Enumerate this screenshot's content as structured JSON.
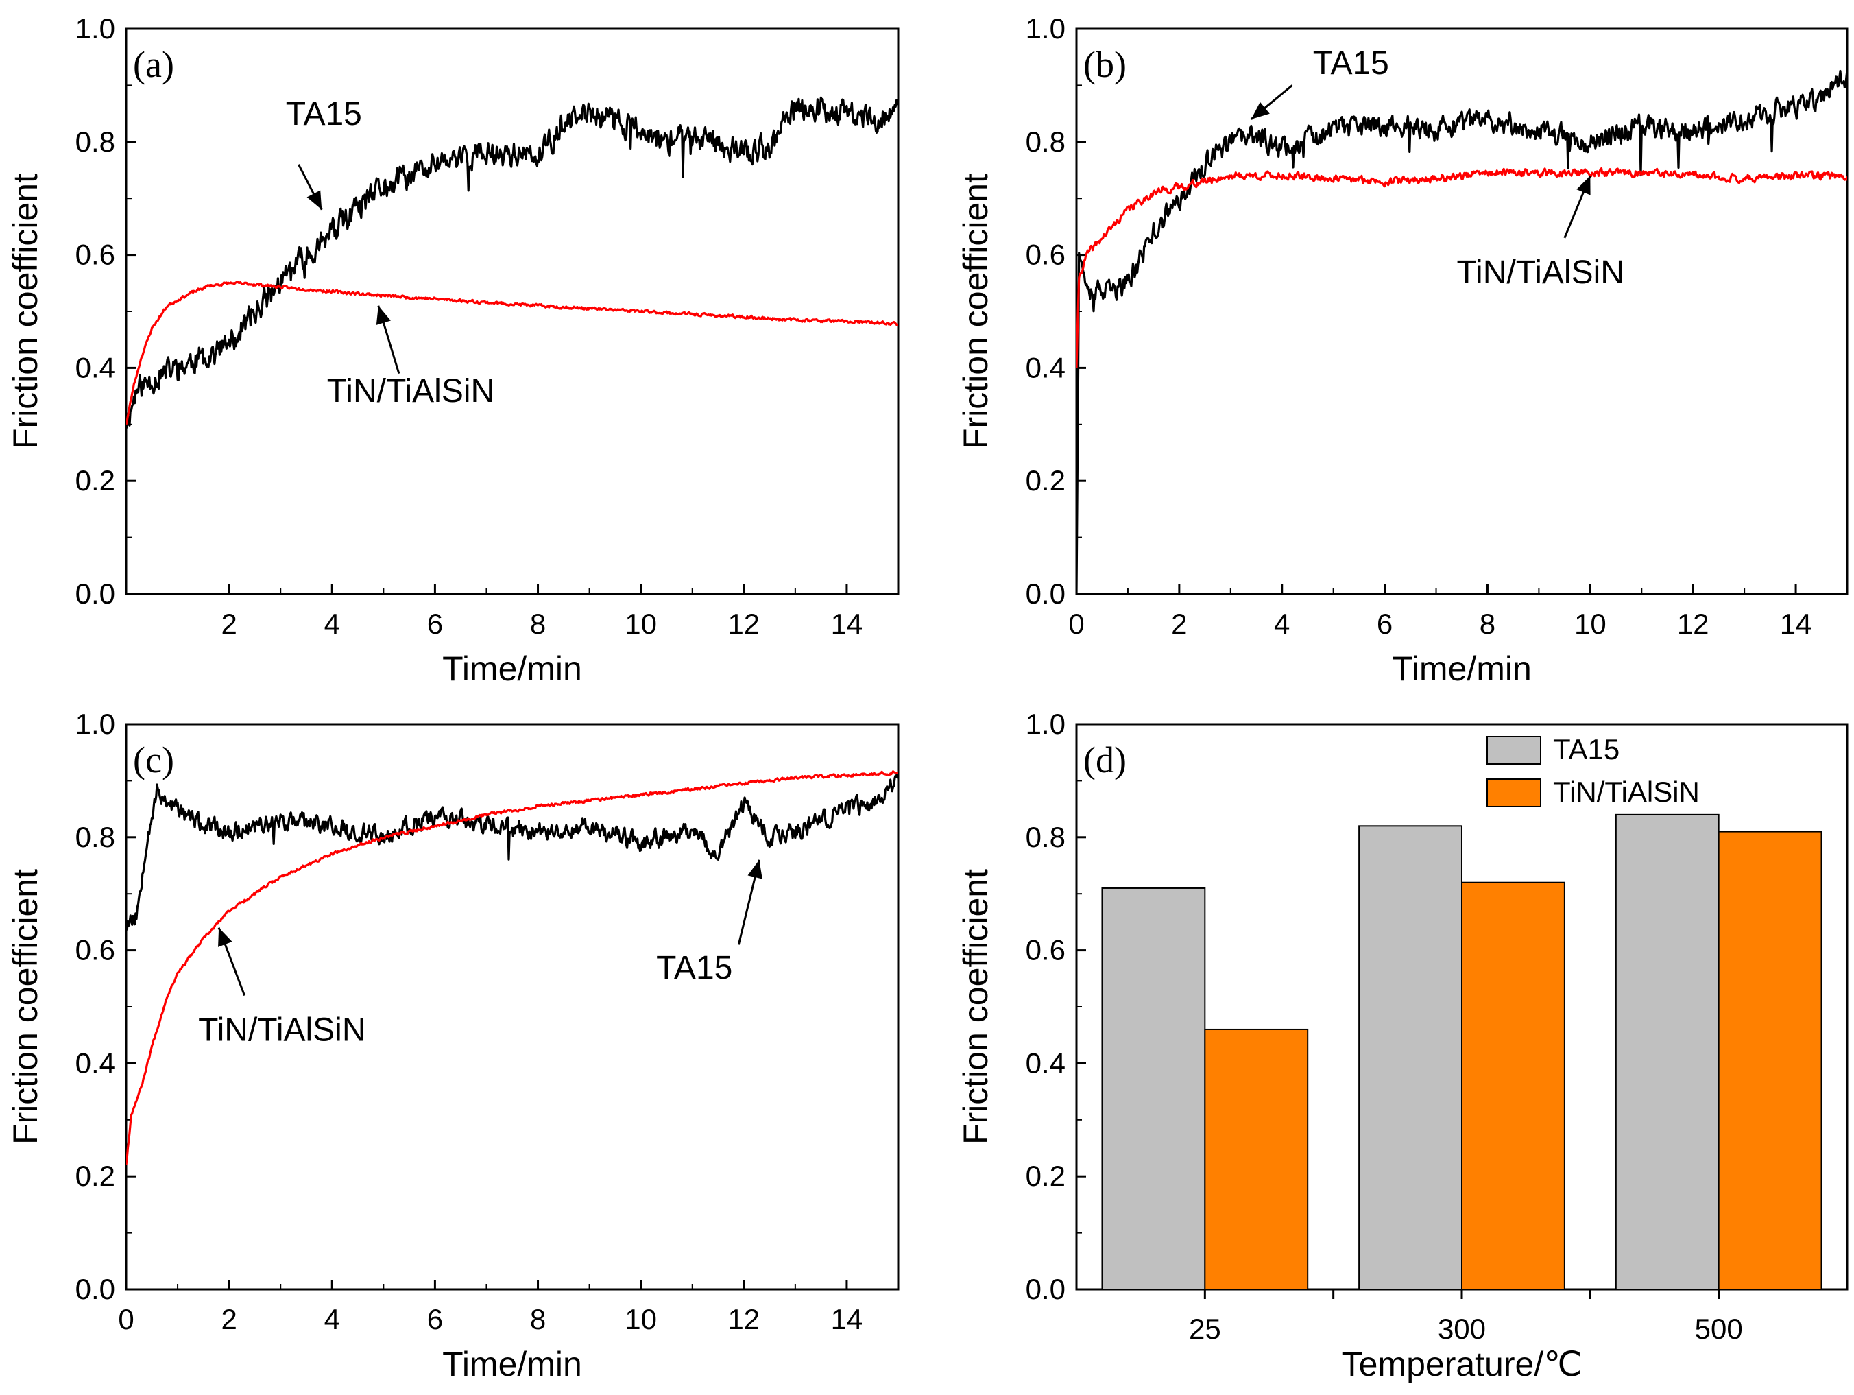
{
  "chart_data": [
    {
      "id": "a",
      "type": "line",
      "panel_label": "(a)",
      "xlabel": "Time/min",
      "ylabel": "Friction coefficient",
      "xlim": [
        0,
        15
      ],
      "ylim": [
        0,
        1.0
      ],
      "xticks": [
        2,
        4,
        6,
        8,
        10,
        12,
        14
      ],
      "xtick_labels": [
        "2",
        "4",
        "6",
        "8",
        "10",
        "12",
        "14"
      ],
      "yticks": [
        0.0,
        0.2,
        0.4,
        0.6,
        0.8,
        1.0
      ],
      "ytick_labels": [
        "0.0",
        "0.2",
        "0.4",
        "0.6",
        "0.8",
        "1.0"
      ],
      "series": [
        {
          "name": "TA15",
          "color": "#000000",
          "noise": 0.035,
          "seed": 11,
          "x": [
            0,
            0.2,
            0.5,
            1,
            1.5,
            2,
            2.5,
            3,
            3.5,
            4,
            4.5,
            5,
            5.5,
            6,
            6.5,
            7,
            7.5,
            8,
            8.5,
            9,
            9.5,
            10,
            10.5,
            11,
            11.5,
            12,
            12.5,
            13,
            13.5,
            14,
            14.5,
            15
          ],
          "values": [
            0.3,
            0.36,
            0.38,
            0.4,
            0.42,
            0.44,
            0.5,
            0.55,
            0.6,
            0.64,
            0.68,
            0.72,
            0.74,
            0.76,
            0.77,
            0.78,
            0.78,
            0.77,
            0.83,
            0.85,
            0.84,
            0.82,
            0.8,
            0.81,
            0.8,
            0.78,
            0.79,
            0.86,
            0.86,
            0.85,
            0.84,
            0.85
          ]
        },
        {
          "name": "TiN/TiAlSiN",
          "color": "#ff0000",
          "noise": 0.004,
          "seed": 23,
          "x": [
            0,
            0.15,
            0.3,
            0.5,
            0.8,
            1.2,
            1.6,
            2,
            2.5,
            3,
            4,
            5,
            6,
            7,
            8,
            9,
            10,
            11,
            12,
            13,
            14,
            15
          ],
          "values": [
            0.3,
            0.37,
            0.42,
            0.47,
            0.51,
            0.53,
            0.545,
            0.55,
            0.548,
            0.543,
            0.535,
            0.528,
            0.522,
            0.516,
            0.51,
            0.505,
            0.5,
            0.495,
            0.49,
            0.485,
            0.482,
            0.478
          ]
        }
      ],
      "annotations": [
        {
          "text": "TA15",
          "x": 3.1,
          "y": 0.83,
          "ax": 3.8,
          "ay": 0.68,
          "tx": 3.35,
          "ty": 0.76
        },
        {
          "text": "TiN/TiAlSiN",
          "x": 3.9,
          "y": 0.34,
          "ax": 4.9,
          "ay": 0.51,
          "tx": 5.3,
          "ty": 0.39
        }
      ]
    },
    {
      "id": "b",
      "type": "line",
      "panel_label": "(b)",
      "xlabel": "Time/min",
      "ylabel": "Friction coefficient",
      "xlim": [
        0,
        15
      ],
      "ylim": [
        0,
        1.0
      ],
      "xticks": [
        0,
        2,
        4,
        6,
        8,
        10,
        12,
        14
      ],
      "xtick_labels": [
        "0",
        "2",
        "4",
        "6",
        "8",
        "10",
        "12",
        "14"
      ],
      "yticks": [
        0.0,
        0.2,
        0.4,
        0.6,
        0.8,
        1.0
      ],
      "ytick_labels": [
        "0.0",
        "0.2",
        "0.4",
        "0.6",
        "0.8",
        "1.0"
      ],
      "series": [
        {
          "name": "TA15",
          "color": "#000000",
          "noise": 0.03,
          "seed": 37,
          "x": [
            0,
            0.05,
            0.1,
            0.3,
            0.6,
            1,
            1.5,
            2,
            2.5,
            3,
            3.5,
            4,
            5,
            6,
            7,
            8,
            9,
            10,
            11,
            12,
            13,
            14,
            14.5,
            15
          ],
          "values": [
            0.0,
            0.62,
            0.58,
            0.54,
            0.53,
            0.55,
            0.64,
            0.7,
            0.76,
            0.8,
            0.81,
            0.79,
            0.82,
            0.83,
            0.82,
            0.84,
            0.82,
            0.8,
            0.83,
            0.82,
            0.84,
            0.86,
            0.88,
            0.92
          ]
        },
        {
          "name": "TiN/TiAlSiN",
          "color": "#ff0000",
          "noise": 0.01,
          "seed": 41,
          "x": [
            0,
            0.05,
            0.2,
            0.5,
            1,
            1.5,
            2,
            3,
            4,
            5,
            6,
            7,
            8,
            9,
            10,
            11,
            12,
            13,
            14,
            15
          ],
          "values": [
            0.4,
            0.56,
            0.6,
            0.63,
            0.68,
            0.71,
            0.72,
            0.74,
            0.74,
            0.735,
            0.73,
            0.735,
            0.745,
            0.745,
            0.745,
            0.745,
            0.74,
            0.735,
            0.74,
            0.74
          ]
        }
      ],
      "annotations": [
        {
          "text": "TA15",
          "x": 4.6,
          "y": 0.92,
          "ax": 3.4,
          "ay": 0.84,
          "tx": 4.2,
          "ty": 0.9
        },
        {
          "text": "TiN/TiAlSiN",
          "x": 7.4,
          "y": 0.55,
          "ax": 10.0,
          "ay": 0.74,
          "tx": 9.5,
          "ty": 0.63
        }
      ]
    },
    {
      "id": "c",
      "type": "line",
      "panel_label": "(c)",
      "xlabel": "Time/min",
      "ylabel": "Friction coefficient",
      "xlim": [
        0,
        15
      ],
      "ylim": [
        0,
        1.0
      ],
      "xticks": [
        0,
        2,
        4,
        6,
        8,
        10,
        12,
        14
      ],
      "xtick_labels": [
        "0",
        "2",
        "4",
        "6",
        "8",
        "10",
        "12",
        "14"
      ],
      "yticks": [
        0.0,
        0.2,
        0.4,
        0.6,
        0.8,
        1.0
      ],
      "ytick_labels": [
        "0.0",
        "0.2",
        "0.4",
        "0.6",
        "0.8",
        "1.0"
      ],
      "series": [
        {
          "name": "TA15",
          "color": "#000000",
          "noise": 0.025,
          "seed": 53,
          "x": [
            0,
            0.2,
            0.4,
            0.6,
            1,
            1.5,
            2,
            3,
            4,
            5,
            6,
            7,
            8,
            9,
            10,
            11,
            11.5,
            12,
            12.5,
            13,
            14,
            14.5,
            15
          ],
          "values": [
            0.65,
            0.66,
            0.8,
            0.88,
            0.85,
            0.82,
            0.81,
            0.83,
            0.82,
            0.8,
            0.84,
            0.82,
            0.81,
            0.82,
            0.79,
            0.81,
            0.77,
            0.86,
            0.8,
            0.81,
            0.85,
            0.86,
            0.9
          ]
        },
        {
          "name": "TiN/TiAlSiN",
          "color": "#ff0000",
          "noise": 0.004,
          "seed": 67,
          "x": [
            0,
            0.1,
            0.3,
            0.5,
            0.8,
            1,
            1.5,
            2,
            3,
            4,
            5,
            6,
            7,
            8,
            9,
            10,
            11,
            12,
            13,
            14,
            15
          ],
          "values": [
            0.22,
            0.31,
            0.36,
            0.43,
            0.52,
            0.56,
            0.62,
            0.67,
            0.73,
            0.77,
            0.8,
            0.82,
            0.84,
            0.855,
            0.865,
            0.875,
            0.885,
            0.895,
            0.905,
            0.91,
            0.915
          ]
        }
      ],
      "annotations": [
        {
          "text": "TiN/TiAlSiN",
          "x": 1.4,
          "y": 0.44,
          "ax": 1.8,
          "ay": 0.64,
          "tx": 2.3,
          "ty": 0.52
        },
        {
          "text": "TA15",
          "x": 10.3,
          "y": 0.55,
          "ax": 12.3,
          "ay": 0.76,
          "tx": 11.9,
          "ty": 0.61
        }
      ]
    },
    {
      "id": "d",
      "type": "bar",
      "panel_label": "(d)",
      "xlabel": "Temperature/℃",
      "ylabel": "Friction coefficient",
      "categories": [
        "25",
        "300",
        "500"
      ],
      "ylim": [
        0,
        1.0
      ],
      "yticks": [
        0.0,
        0.2,
        0.4,
        0.6,
        0.8,
        1.0
      ],
      "ytick_labels": [
        "0.0",
        "0.2",
        "0.4",
        "0.6",
        "0.8",
        "1.0"
      ],
      "series": [
        {
          "name": "TA15",
          "color": "#c0c0c0",
          "values": [
            0.71,
            0.82,
            0.84
          ]
        },
        {
          "name": "TiN/TiAlSiN",
          "color": "#ff8000",
          "values": [
            0.46,
            0.72,
            0.81
          ]
        }
      ],
      "legend": "top-right"
    }
  ]
}
